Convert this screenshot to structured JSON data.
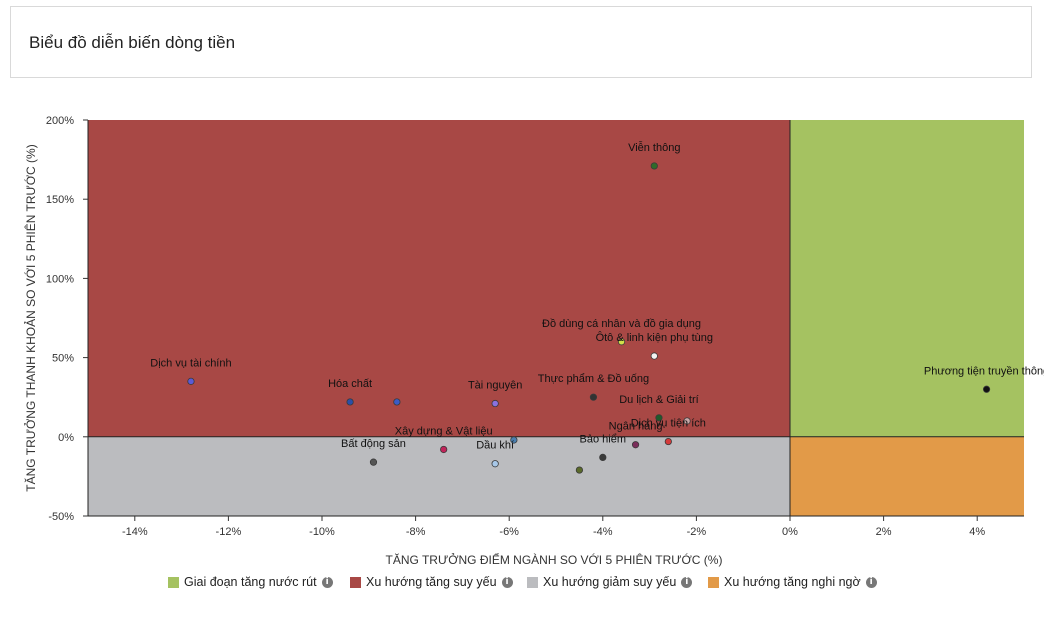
{
  "page": {
    "title": "Biểu đồ diễn biến dòng tiền"
  },
  "chart_data": {
    "type": "scatter",
    "title": "",
    "xlabel": "TĂNG TRƯỞNG ĐIỂM NGÀNH SO VỚI 5 PHIÊN TRƯỚC (%)",
    "ylabel": "TĂNG TRƯỞNG THANH KHOẢN SO VỚI 5 PHIÊN TRƯỚC (%)",
    "xlim": [
      -15,
      5
    ],
    "ylim": [
      -50,
      200
    ],
    "x_ticks": [
      -14,
      -12,
      -10,
      -8,
      -6,
      -4,
      -2,
      0,
      2,
      4
    ],
    "x_tick_labels": [
      "-14%",
      "-12%",
      "-10%",
      "-8%",
      "-6%",
      "-4%",
      "-2%",
      "0%",
      "2%",
      "4%"
    ],
    "y_ticks": [
      -50,
      0,
      50,
      100,
      150,
      200
    ],
    "y_tick_labels": [
      "-50%",
      "0%",
      "50%",
      "100%",
      "150%",
      "200%"
    ],
    "grid": false,
    "quadrants": [
      {
        "name": "Giai đoạn tăng nước rút",
        "color": "#a5c261",
        "x_side": "positive",
        "y_side": "positive"
      },
      {
        "name": "Xu hướng tăng suy yếu",
        "color": "#a84845",
        "x_side": "negative",
        "y_side": "positive"
      },
      {
        "name": "Xu hướng giảm suy yếu",
        "color": "#bbbcbf",
        "x_side": "negative",
        "y_side": "negative"
      },
      {
        "name": "Xu hướng tăng nghi ngờ",
        "color": "#e29a48",
        "x_side": "positive",
        "y_side": "negative"
      }
    ],
    "legend_position": "bottom",
    "points": [
      {
        "label": "Viễn thông",
        "x": -2.9,
        "y": 171,
        "color": "#2f6b2a"
      },
      {
        "label": "Đồ dùng cá nhân và đồ gia dụng",
        "x": -3.6,
        "y": 60,
        "color": "#d2e04a"
      },
      {
        "label": "Ôtô & linh kiện phụ tùng",
        "x": -2.9,
        "y": 51,
        "color": "#f2f2f2"
      },
      {
        "label": "Dịch vụ tài chính",
        "x": -12.8,
        "y": 35,
        "color": "#5a5ad6"
      },
      {
        "label": "Phương tiện truyền thông",
        "x": 4.2,
        "y": 30,
        "color": "#111111"
      },
      {
        "label": "Thực phẩm & Đồ uống",
        "x": -4.2,
        "y": 25,
        "color": "#333333"
      },
      {
        "label": "Hóa chất",
        "x": -9.4,
        "y": 22,
        "color": "#2a4fa8"
      },
      {
        "label": "",
        "x": -8.4,
        "y": 22,
        "color": "#3a5bc7"
      },
      {
        "label": "Tài nguyên",
        "x": -6.3,
        "y": 21,
        "color": "#8a72e0"
      },
      {
        "label": "Du lịch & Giải trí",
        "x": -2.8,
        "y": 12,
        "color": "#1f5a2a"
      },
      {
        "label": "",
        "x": -2.2,
        "y": 10,
        "color": "#c9a8a8"
      },
      {
        "label": "",
        "x": -5.9,
        "y": -2,
        "color": "#4a7fb0"
      },
      {
        "label": "Dịch vụ tiện ích",
        "x": -2.6,
        "y": -3,
        "color": "#d43a3a"
      },
      {
        "label": "Ngân hàng",
        "x": -3.3,
        "y": -5,
        "color": "#7a2d5a"
      },
      {
        "label": "Xây dựng & Vật liệu",
        "x": -7.4,
        "y": -8,
        "color": "#c0245a"
      },
      {
        "label": "Dầu khí",
        "x": -6.3,
        "y": -17,
        "color": "#a8c8e8"
      },
      {
        "label": "Bảo hiểm",
        "x": -4.0,
        "y": -13,
        "color": "#3a3a3a"
      },
      {
        "label": "Bất động sản",
        "x": -8.9,
        "y": -16,
        "color": "#555555"
      },
      {
        "label": "",
        "x": -4.5,
        "y": -21,
        "color": "#5a6a2a"
      }
    ]
  }
}
